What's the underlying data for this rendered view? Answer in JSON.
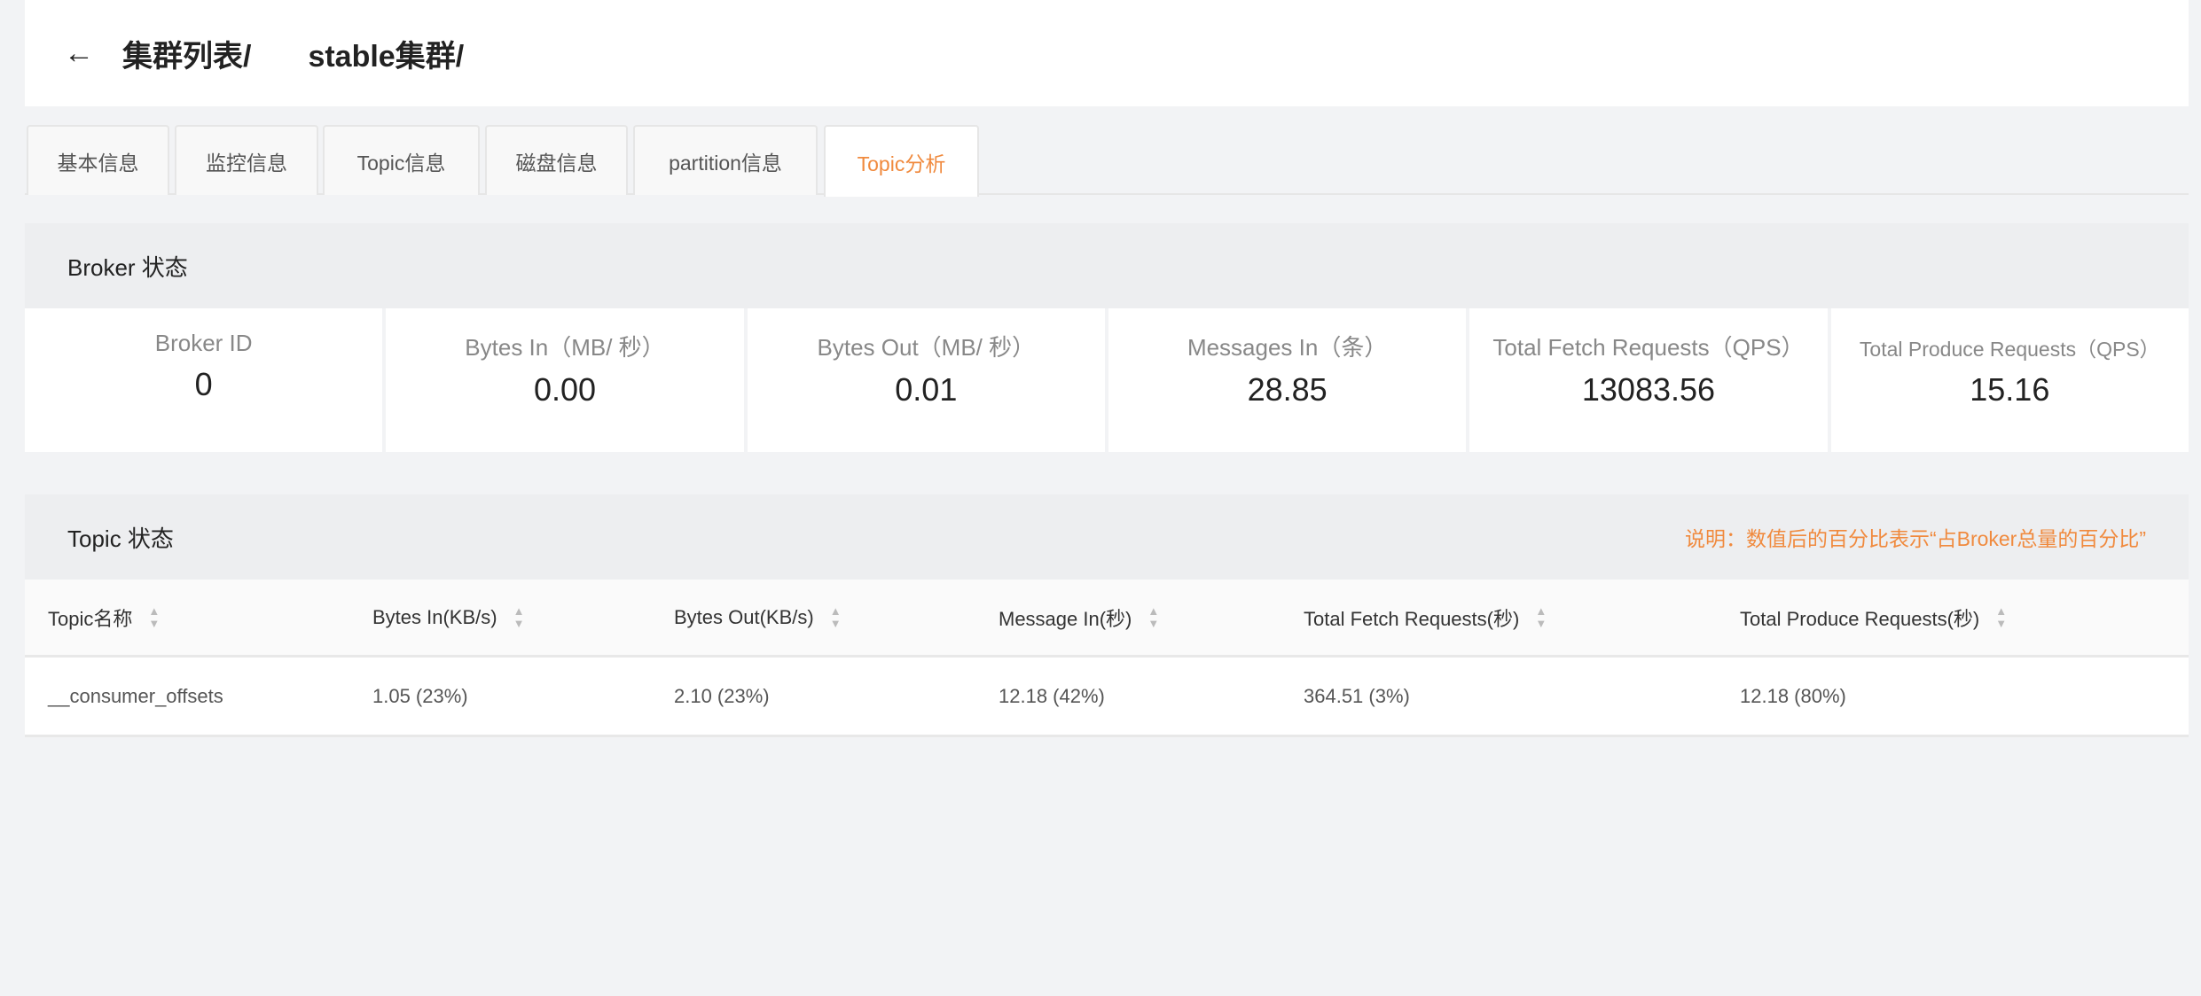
{
  "header": {
    "back_icon": "arrow-left-icon",
    "breadcrumb": [
      "集群列表/",
      "stable集群/"
    ]
  },
  "tabs": [
    "基本信息",
    "监控信息",
    "Topic信息",
    "磁盘信息",
    "partition信息",
    "Topic分析"
  ],
  "active_tab": "Topic分析",
  "accent_color": "#f08a3e",
  "broker": {
    "title": "Broker 状态",
    "cards": [
      {
        "label": "Broker ID",
        "value": "0"
      },
      {
        "label": "Bytes In（MB/ 秒）",
        "value": "0.00"
      },
      {
        "label": "Bytes Out（MB/ 秒）",
        "value": "0.01"
      },
      {
        "label": "Messages In（条）",
        "value": "28.85"
      },
      {
        "label": "Total Fetch Requests（QPS）",
        "value": "13083.56"
      },
      {
        "label": "Total Produce Requests（QPS）",
        "value": "15.16"
      }
    ]
  },
  "topic": {
    "title": "Topic 状态",
    "note": "说明：数值后的百分比表示“占Broker总量的百分比”",
    "columns": [
      "Topic名称",
      "Bytes In(KB/s)",
      "Bytes Out(KB/s)",
      "Message In(秒)",
      "Total Fetch Requests(秒)",
      "Total Produce Requests(秒)"
    ],
    "rows": [
      [
        "__consumer_offsets",
        "1.05 (23%)",
        "2.10 (23%)",
        "12.18 (42%)",
        "364.51 (3%)",
        "12.18 (80%)"
      ]
    ]
  }
}
